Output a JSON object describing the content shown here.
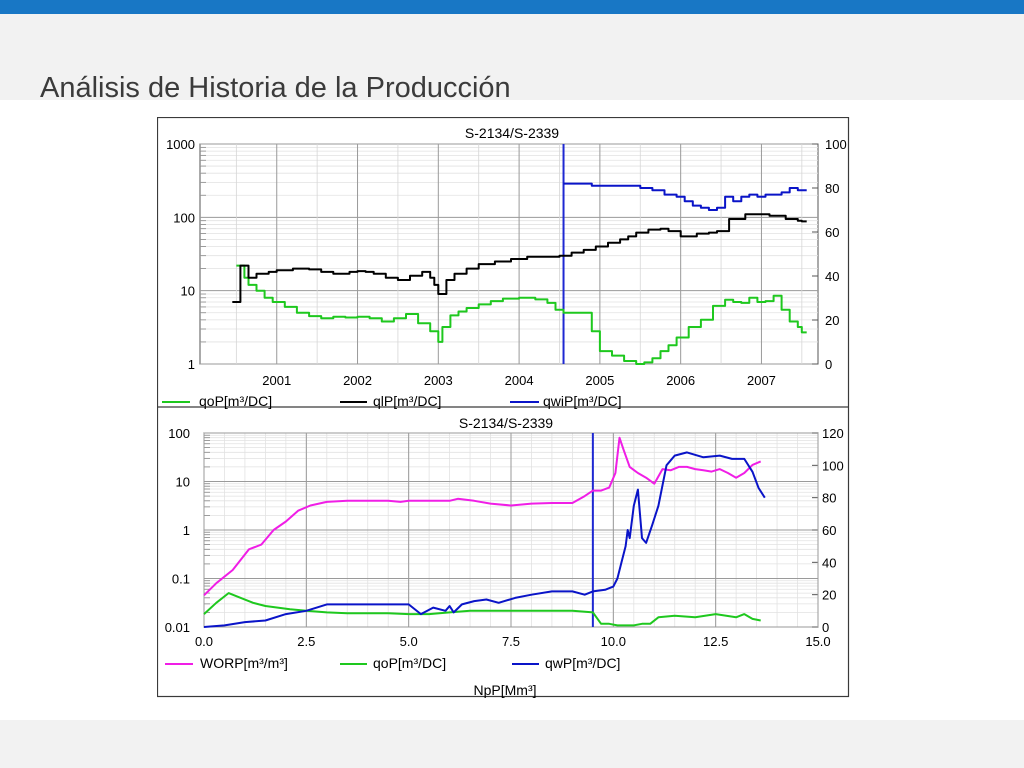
{
  "slide": {
    "title": "Análisis de Historia de la Producción"
  },
  "colors": {
    "topbar": "#1877c5",
    "green": "#1ec81e",
    "black": "#000000",
    "blue": "#0a14c8",
    "magenta": "#f01ee6",
    "marker": "#1e28d2"
  },
  "chart_data": [
    {
      "type": "line",
      "title": "S-2134/S-2339",
      "x_axis": {
        "ticks": [
          "2001",
          "2002",
          "2003",
          "2004",
          "2005",
          "2006",
          "2007"
        ],
        "range": [
          2000.05,
          2007.7
        ]
      },
      "y_left": {
        "scale": "log",
        "range": [
          1,
          1000
        ],
        "ticks": [
          "1",
          "10",
          "100",
          "1000"
        ]
      },
      "y_right": {
        "scale": "linear",
        "range": [
          0,
          100
        ],
        "ticks": [
          "0",
          "20",
          "40",
          "60",
          "80",
          "100"
        ]
      },
      "grid": true,
      "legend": [
        "qoP[m³/DC]",
        "qlP[m³/DC]",
        "qwiP[m³/DC]"
      ],
      "vertical_marker_x": 2004.55,
      "series": [
        {
          "name": "qoP[m³/DC]",
          "axis": "left",
          "color": "#1ec81e",
          "x": [
            2000.5,
            2000.6,
            2000.65,
            2000.75,
            2000.85,
            2000.95,
            2001.1,
            2001.25,
            2001.4,
            2001.55,
            2001.7,
            2001.85,
            2002.0,
            2002.15,
            2002.3,
            2002.45,
            2002.6,
            2002.75,
            2002.9,
            2003.0,
            2003.05,
            2003.15,
            2003.25,
            2003.35,
            2003.5,
            2003.65,
            2003.8,
            2004.0,
            2004.2,
            2004.35,
            2004.45,
            2004.55,
            2004.75,
            2004.9,
            2005.0,
            2005.15,
            2005.3,
            2005.45,
            2005.55,
            2005.65,
            2005.75,
            2005.85,
            2005.95,
            2006.1,
            2006.25,
            2006.4,
            2006.55,
            2006.65,
            2006.75,
            2006.85,
            2006.95,
            2007.05,
            2007.15,
            2007.25,
            2007.35,
            2007.45,
            2007.5
          ],
          "y": [
            22,
            15,
            12,
            10,
            8,
            7,
            6,
            5,
            4.5,
            4.2,
            4.4,
            4.3,
            4.4,
            4.2,
            3.8,
            4.2,
            4.8,
            3.6,
            2.8,
            2,
            3.2,
            4.6,
            5.2,
            5.8,
            6.5,
            7.2,
            7.8,
            8,
            7.6,
            6.8,
            5.5,
            5,
            5,
            2.8,
            1.5,
            1.3,
            1.1,
            1,
            1.05,
            1.2,
            1.5,
            1.8,
            2.3,
            3.2,
            4,
            6.2,
            7.5,
            7,
            6.8,
            8,
            7,
            7.2,
            8.5,
            5.5,
            3.8,
            3.2,
            2.7
          ]
        },
        {
          "name": "qlP[m³/DC]",
          "axis": "left",
          "color": "#000000",
          "x": [
            2000.45,
            2000.55,
            2000.65,
            2000.75,
            2000.9,
            2001.0,
            2001.2,
            2001.4,
            2001.55,
            2001.7,
            2001.9,
            2002.0,
            2002.1,
            2002.2,
            2002.35,
            2002.5,
            2002.65,
            2002.8,
            2002.9,
            2002.95,
            2003.0,
            2003.1,
            2003.2,
            2003.35,
            2003.5,
            2003.7,
            2003.9,
            2004.1,
            2004.3,
            2004.5,
            2004.65,
            2004.8,
            2004.95,
            2005.1,
            2005.25,
            2005.35,
            2005.45,
            2005.6,
            2005.75,
            2005.85,
            2006.0,
            2006.2,
            2006.35,
            2006.45,
            2006.6,
            2006.8,
            2006.95,
            2007.1,
            2007.3,
            2007.45,
            2007.5
          ],
          "y": [
            7,
            22,
            15,
            17,
            18,
            19,
            20,
            19.5,
            18,
            17,
            18,
            18.5,
            18,
            17,
            15,
            14,
            16,
            18,
            15,
            12,
            9,
            14,
            17,
            20,
            23,
            25,
            27,
            29,
            29,
            30,
            33,
            36,
            40,
            45,
            50,
            55,
            62,
            68,
            70,
            65,
            55,
            60,
            62,
            65,
            95,
            110,
            110,
            105,
            95,
            90,
            88
          ]
        },
        {
          "name": "qwiP[m³/DC]",
          "axis": "right",
          "color": "#0a14c8",
          "x": [
            2004.55,
            2004.75,
            2004.9,
            2005.1,
            2005.3,
            2005.5,
            2005.65,
            2005.8,
            2005.95,
            2006.05,
            2006.15,
            2006.25,
            2006.35,
            2006.45,
            2006.55,
            2006.65,
            2006.75,
            2006.85,
            2006.95,
            2007.05,
            2007.15,
            2007.25,
            2007.35,
            2007.45,
            2007.5
          ],
          "y": [
            82,
            82,
            81,
            81,
            81,
            80,
            79,
            77,
            76,
            74,
            72,
            71,
            70,
            71,
            76,
            74,
            76,
            77,
            76,
            77,
            77,
            78,
            80,
            79,
            79
          ]
        }
      ]
    },
    {
      "type": "line",
      "title": "S-2134/S-2339",
      "xlabel": "NpP[Mm³]",
      "x_axis": {
        "range": [
          0,
          15
        ],
        "ticks": [
          "0.0",
          "2.5",
          "5.0",
          "7.5",
          "10.0",
          "12.5",
          "15.0"
        ]
      },
      "y_left": {
        "scale": "log",
        "range": [
          0.01,
          100
        ],
        "ticks": [
          "0.01",
          "0.1",
          "1",
          "10",
          "100"
        ]
      },
      "y_right": {
        "scale": "linear",
        "range": [
          0,
          120
        ],
        "ticks": [
          "0",
          "20",
          "40",
          "60",
          "80",
          "100",
          "120"
        ]
      },
      "grid": true,
      "legend": [
        "WORP[m³/m³]",
        "qoP[m³/DC]",
        "qwP[m³/DC]"
      ],
      "vertical_marker_x": 9.5,
      "series": [
        {
          "name": "WORP[m³/m³]",
          "axis": "left",
          "color": "#f01ee6",
          "x": [
            0,
            0.3,
            0.7,
            1.1,
            1.4,
            1.7,
            2.0,
            2.3,
            2.6,
            3.0,
            3.5,
            4.0,
            4.5,
            4.8,
            5.0,
            5.5,
            6.0,
            6.2,
            6.6,
            7.0,
            7.5,
            8.0,
            8.5,
            9.0,
            9.3,
            9.5,
            9.7,
            9.9,
            10.05,
            10.15,
            10.25,
            10.4,
            10.6,
            10.8,
            11.0,
            11.2,
            11.4,
            11.6,
            11.8,
            12.0,
            12.2,
            12.4,
            12.6,
            12.8,
            13.0,
            13.2,
            13.4,
            13.6
          ],
          "y": [
            0.045,
            0.08,
            0.15,
            0.4,
            0.5,
            1,
            1.5,
            2.5,
            3.2,
            3.8,
            4,
            4,
            4,
            3.8,
            4,
            4,
            4,
            4.4,
            4,
            3.5,
            3.2,
            3.5,
            3.6,
            3.6,
            5,
            6.5,
            6.5,
            7.5,
            15,
            80,
            45,
            20,
            15,
            12,
            9,
            18,
            17,
            20,
            20,
            18,
            17,
            16,
            18,
            15,
            12,
            15,
            22,
            26
          ]
        },
        {
          "name": "qoP[m³/DC]",
          "axis": "right",
          "color": "#1ec81e",
          "x": [
            0,
            0.3,
            0.6,
            0.9,
            1.2,
            1.5,
            1.8,
            2.1,
            2.5,
            3.0,
            3.5,
            4.0,
            4.5,
            5.0,
            5.5,
            6.0,
            6.5,
            7.0,
            8.0,
            9.0,
            9.5,
            9.7,
            9.9,
            10.1,
            10.3,
            10.5,
            10.7,
            10.9,
            11.1,
            11.5,
            12.0,
            12.5,
            13.0,
            13.2,
            13.4,
            13.6
          ],
          "y": [
            8,
            15,
            21,
            18,
            15,
            13,
            12,
            11,
            10,
            9,
            8.5,
            8.5,
            8.5,
            8,
            8,
            9,
            10,
            10,
            10,
            10,
            9,
            2,
            2,
            1,
            1,
            1,
            2,
            2,
            6,
            7,
            6,
            8,
            6,
            8,
            5,
            4
          ]
        },
        {
          "name": "qwP[m³/DC]",
          "axis": "right",
          "color": "#0a14c8",
          "x": [
            0,
            0.5,
            1.0,
            1.5,
            2.0,
            2.5,
            3.0,
            3.5,
            4.0,
            4.5,
            5.0,
            5.3,
            5.6,
            5.9,
            6.0,
            6.1,
            6.3,
            6.6,
            6.9,
            7.2,
            7.6,
            8.0,
            8.5,
            9.0,
            9.3,
            9.5,
            9.8,
            10.0,
            10.1,
            10.2,
            10.3,
            10.35,
            10.4,
            10.5,
            10.6,
            10.7,
            10.8,
            10.95,
            11.1,
            11.3,
            11.5,
            11.8,
            12.2,
            12.6,
            12.9,
            13.2,
            13.4,
            13.55,
            13.7
          ],
          "y": [
            0,
            1,
            3,
            4,
            8,
            10,
            14,
            14,
            14,
            14,
            14,
            8,
            12,
            10,
            13,
            9,
            14,
            16,
            17,
            15,
            18,
            20,
            22,
            22,
            20,
            22,
            23,
            25,
            30,
            40,
            50,
            60,
            55,
            75,
            85,
            55,
            52,
            63,
            75,
            100,
            106,
            108,
            105,
            106,
            104,
            104,
            96,
            86,
            80
          ]
        }
      ]
    }
  ]
}
